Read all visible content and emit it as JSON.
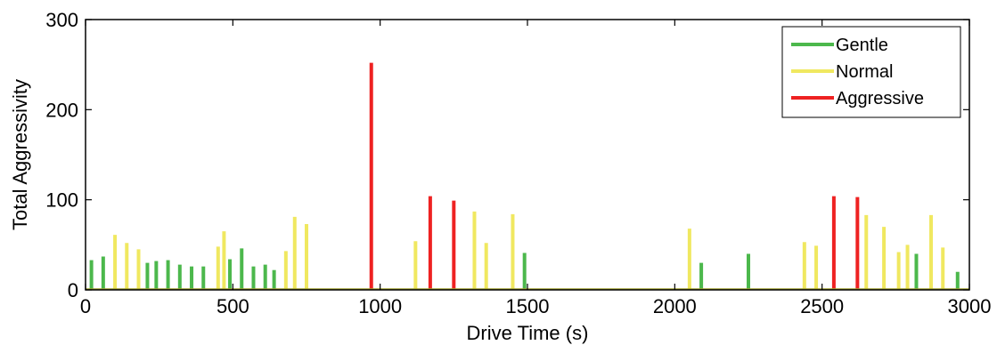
{
  "chart_data": {
    "type": "bar",
    "xlabel": "Drive Time (s)",
    "ylabel": "Total Aggressivity",
    "xlim": [
      0,
      3000
    ],
    "ylim": [
      0,
      300
    ],
    "xticks": [
      0,
      500,
      1000,
      1500,
      2000,
      2500,
      3000
    ],
    "yticks": [
      0,
      100,
      200,
      300
    ],
    "grid": false,
    "legend_position": "top-right",
    "colors": {
      "Gentle": "#4cb84c",
      "Normal": "#f0e860",
      "Aggressive": "#ee2222"
    },
    "series": [
      {
        "name": "Gentle",
        "points": [
          [
            20,
            33
          ],
          [
            60,
            37
          ],
          [
            210,
            30
          ],
          [
            240,
            32
          ],
          [
            280,
            33
          ],
          [
            320,
            28
          ],
          [
            360,
            26
          ],
          [
            400,
            26
          ],
          [
            490,
            34
          ],
          [
            530,
            46
          ],
          [
            570,
            26
          ],
          [
            610,
            28
          ],
          [
            640,
            22
          ],
          [
            1490,
            41
          ],
          [
            2090,
            30
          ],
          [
            2250,
            40
          ],
          [
            2820,
            40
          ],
          [
            2960,
            20
          ]
        ]
      },
      {
        "name": "Normal",
        "points": [
          [
            100,
            61
          ],
          [
            140,
            52
          ],
          [
            180,
            45
          ],
          [
            450,
            48
          ],
          [
            470,
            65
          ],
          [
            680,
            43
          ],
          [
            710,
            81
          ],
          [
            750,
            73
          ],
          [
            1120,
            54
          ],
          [
            1320,
            87
          ],
          [
            1360,
            52
          ],
          [
            1450,
            84
          ],
          [
            2050,
            68
          ],
          [
            2440,
            53
          ],
          [
            2480,
            49
          ],
          [
            2650,
            83
          ],
          [
            2710,
            70
          ],
          [
            2760,
            42
          ],
          [
            2790,
            50
          ],
          [
            2870,
            83
          ],
          [
            2910,
            47
          ]
        ]
      },
      {
        "name": "Aggressive",
        "points": [
          [
            970,
            252
          ],
          [
            1170,
            104
          ],
          [
            1250,
            99
          ],
          [
            2540,
            104
          ],
          [
            2620,
            103
          ]
        ]
      }
    ]
  }
}
